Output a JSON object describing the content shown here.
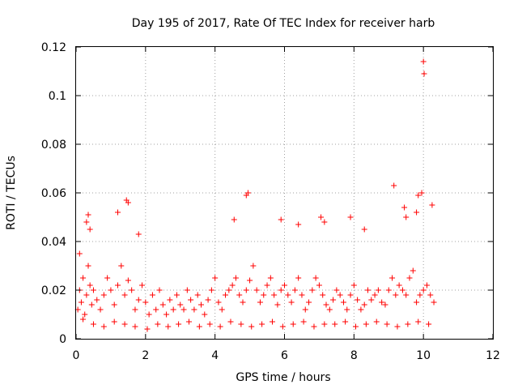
{
  "chart_data": {
    "type": "scatter",
    "title": "Day 195 of 2017, Rate Of TEC Index for receiver harb",
    "xlabel": "GPS time / hours",
    "ylabel": "ROTI / TECUs",
    "xlim": [
      0,
      12
    ],
    "ylim": [
      0,
      0.12
    ],
    "xticks": [
      0,
      2,
      4,
      6,
      8,
      10,
      12
    ],
    "xtick_labels": [
      "0",
      "2",
      "4",
      "6",
      "8",
      "10",
      "12"
    ],
    "yticks": [
      0,
      0.02,
      0.04,
      0.06,
      0.08,
      0.1,
      0.12
    ],
    "ytick_labels": [
      "0",
      "0.02",
      "0.04",
      "0.06",
      "0.08",
      "0.1",
      "0.12"
    ],
    "grid": true,
    "marker": "+",
    "color": "#ff0000",
    "series": [
      {
        "name": "ROTI",
        "x": [
          0.05,
          0.1,
          0.15,
          0.2,
          0.25,
          0.3,
          0.35,
          0.4,
          0.45,
          0.5,
          0.6,
          0.7,
          0.8,
          0.9,
          1.0,
          1.1,
          1.2,
          1.3,
          1.4,
          1.5,
          1.6,
          1.7,
          1.8,
          1.9,
          2.0,
          2.1,
          2.2,
          2.3,
          2.4,
          2.5,
          2.6,
          2.7,
          2.8,
          2.9,
          3.0,
          3.1,
          3.2,
          3.3,
          3.4,
          3.5,
          3.6,
          3.7,
          3.8,
          3.9,
          4.0,
          4.1,
          4.2,
          4.3,
          4.4,
          4.5,
          4.6,
          4.7,
          4.8,
          4.9,
          5.0,
          5.1,
          5.2,
          5.3,
          5.4,
          5.5,
          5.6,
          5.7,
          5.8,
          5.9,
          6.0,
          6.1,
          6.2,
          6.3,
          6.4,
          6.5,
          6.6,
          6.7,
          6.8,
          6.9,
          7.0,
          7.1,
          7.2,
          7.3,
          7.4,
          7.5,
          7.6,
          7.7,
          7.8,
          7.9,
          8.0,
          8.1,
          8.2,
          8.3,
          8.4,
          8.5,
          8.6,
          8.7,
          8.8,
          8.9,
          9.0,
          9.1,
          9.2,
          9.3,
          9.4,
          9.5,
          9.6,
          9.7,
          9.8,
          9.9,
          10.0,
          10.1,
          10.2,
          10.3,
          0.1,
          0.3,
          0.35,
          0.4,
          1.2,
          1.45,
          1.5,
          1.8,
          4.55,
          4.9,
          4.95,
          5.9,
          6.4,
          7.05,
          7.15,
          7.9,
          8.3,
          9.15,
          9.45,
          9.5,
          9.8,
          9.85,
          9.95,
          10.0,
          10.02,
          10.25,
          0.2,
          0.5,
          0.8,
          1.1,
          1.4,
          1.7,
          2.05,
          2.35,
          2.65,
          2.95,
          3.25,
          3.55,
          3.85,
          4.15,
          4.45,
          4.75,
          5.05,
          5.35,
          5.65,
          5.95,
          6.25,
          6.55,
          6.85,
          7.15,
          7.45,
          7.75,
          8.05,
          8.35,
          8.65,
          8.95,
          9.25,
          9.55,
          9.85,
          10.15
        ],
        "y": [
          0.012,
          0.02,
          0.015,
          0.025,
          0.01,
          0.018,
          0.03,
          0.022,
          0.014,
          0.02,
          0.016,
          0.012,
          0.018,
          0.025,
          0.02,
          0.014,
          0.022,
          0.03,
          0.018,
          0.024,
          0.02,
          0.012,
          0.016,
          0.022,
          0.015,
          0.01,
          0.018,
          0.012,
          0.02,
          0.014,
          0.01,
          0.016,
          0.012,
          0.018,
          0.014,
          0.012,
          0.02,
          0.016,
          0.012,
          0.018,
          0.014,
          0.01,
          0.016,
          0.02,
          0.025,
          0.015,
          0.012,
          0.018,
          0.02,
          0.022,
          0.025,
          0.018,
          0.015,
          0.02,
          0.024,
          0.03,
          0.02,
          0.015,
          0.018,
          0.022,
          0.025,
          0.018,
          0.014,
          0.02,
          0.022,
          0.018,
          0.015,
          0.02,
          0.025,
          0.018,
          0.012,
          0.015,
          0.02,
          0.025,
          0.022,
          0.018,
          0.014,
          0.012,
          0.016,
          0.02,
          0.018,
          0.015,
          0.012,
          0.018,
          0.022,
          0.016,
          0.012,
          0.014,
          0.02,
          0.016,
          0.018,
          0.02,
          0.015,
          0.014,
          0.02,
          0.025,
          0.018,
          0.022,
          0.02,
          0.018,
          0.025,
          0.028,
          0.015,
          0.018,
          0.02,
          0.022,
          0.018,
          0.015,
          0.035,
          0.048,
          0.051,
          0.045,
          0.052,
          0.057,
          0.056,
          0.043,
          0.049,
          0.059,
          0.06,
          0.049,
          0.047,
          0.05,
          0.048,
          0.05,
          0.045,
          0.063,
          0.054,
          0.05,
          0.052,
          0.059,
          0.06,
          0.114,
          0.109,
          0.055,
          0.008,
          0.006,
          0.005,
          0.007,
          0.006,
          0.005,
          0.004,
          0.006,
          0.005,
          0.006,
          0.007,
          0.005,
          0.006,
          0.005,
          0.007,
          0.006,
          0.005,
          0.006,
          0.007,
          0.005,
          0.006,
          0.007,
          0.005,
          0.006,
          0.006,
          0.007,
          0.005,
          0.006,
          0.007,
          0.006,
          0.005,
          0.006,
          0.007,
          0.006
        ]
      }
    ]
  }
}
